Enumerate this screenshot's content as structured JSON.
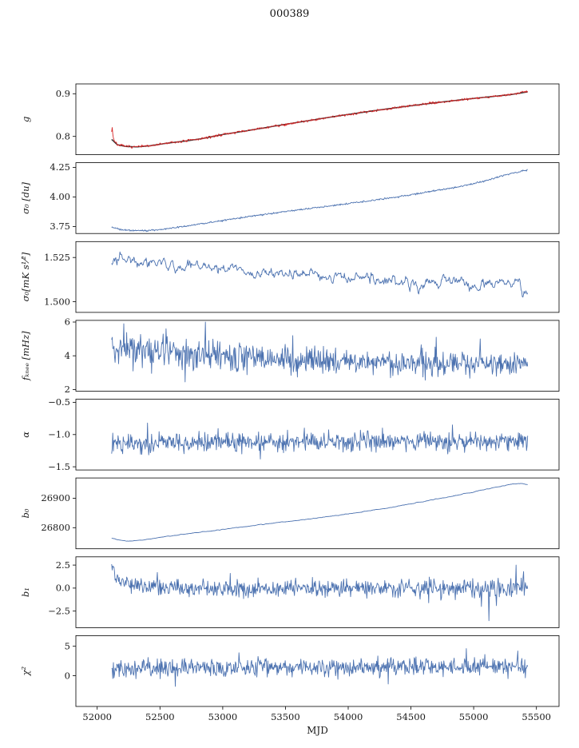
{
  "chart_data": {
    "type": "line",
    "title": "000389",
    "xlabel": "MJD",
    "xlim": [
      51830,
      55680
    ],
    "x_data_range": [
      52115,
      55430
    ],
    "x_ticks": [
      {
        "v": 52000,
        "label": "52000"
      },
      {
        "v": 52500,
        "label": "52500"
      },
      {
        "v": 53000,
        "label": "53000"
      },
      {
        "v": 53500,
        "label": "53500"
      },
      {
        "v": 54000,
        "label": "54000"
      },
      {
        "v": 54500,
        "label": "54500"
      },
      {
        "v": 55000,
        "label": "55000"
      },
      {
        "v": 55500,
        "label": "55500"
      }
    ],
    "colors": {
      "blue": "#4c72b0",
      "red": "#d62728",
      "fit": "#333333",
      "axis": "#000000"
    },
    "legend": "none",
    "grid": false,
    "panels": [
      {
        "name": "g",
        "ylabel": "g",
        "ylim": [
          0.757,
          0.923
        ],
        "yticks": [
          {
            "v": 0.8,
            "label": "0.8"
          },
          {
            "v": 0.9,
            "label": "0.9"
          }
        ],
        "series": [
          {
            "name": "g-fit",
            "color": "#333333",
            "width": 1.5,
            "n": 300,
            "seed": 11,
            "noise": 0,
            "smooth": 0,
            "trend": [
              [
                52115,
                0.793
              ],
              [
                52160,
                0.7805
              ],
              [
                52230,
                0.7762
              ],
              [
                52320,
                0.7755
              ],
              [
                52420,
                0.778
              ],
              [
                52550,
                0.7838
              ],
              [
                52700,
                0.789
              ],
              [
                52850,
                0.7955
              ],
              [
                53000,
                0.8045
              ],
              [
                53200,
                0.8135
              ],
              [
                53400,
                0.8235
              ],
              [
                53600,
                0.833
              ],
              [
                53800,
                0.8425
              ],
              [
                54000,
                0.8515
              ],
              [
                54200,
                0.86
              ],
              [
                54400,
                0.868
              ],
              [
                54600,
                0.8755
              ],
              [
                54800,
                0.8825
              ],
              [
                55000,
                0.889
              ],
              [
                55150,
                0.8935
              ],
              [
                55300,
                0.898
              ],
              [
                55430,
                0.9045
              ]
            ]
          },
          {
            "name": "g-data",
            "color": "#d62728",
            "width": 0.9,
            "n": 700,
            "seed": 7,
            "noise": 0.0025,
            "smooth": 0,
            "trend": [
              [
                52112,
                0.795
              ],
              [
                52118,
                0.828
              ],
              [
                52124,
                0.806
              ],
              [
                52132,
                0.792
              ],
              [
                52160,
                0.7805
              ],
              [
                52230,
                0.7762
              ],
              [
                52320,
                0.7755
              ],
              [
                52420,
                0.778
              ],
              [
                52550,
                0.7838
              ],
              [
                52700,
                0.789
              ],
              [
                52850,
                0.7955
              ],
              [
                53000,
                0.8045
              ],
              [
                53200,
                0.8135
              ],
              [
                53400,
                0.8235
              ],
              [
                53600,
                0.833
              ],
              [
                53800,
                0.8425
              ],
              [
                54000,
                0.8515
              ],
              [
                54200,
                0.86
              ],
              [
                54400,
                0.868
              ],
              [
                54600,
                0.8755
              ],
              [
                54800,
                0.8825
              ],
              [
                55000,
                0.889
              ],
              [
                55150,
                0.8935
              ],
              [
                55300,
                0.898
              ],
              [
                55430,
                0.906
              ]
            ]
          }
        ]
      },
      {
        "name": "sigma0-du",
        "ylabel": "σ₀ [du]",
        "ylim": [
          3.69,
          4.29
        ],
        "yticks": [
          {
            "v": 3.75,
            "label": "3.75"
          },
          {
            "v": 4.0,
            "label": "4.00"
          },
          {
            "v": 4.25,
            "label": "4.25"
          }
        ],
        "series": [
          {
            "name": "sigma0-du",
            "color": "#4c72b0",
            "width": 0.9,
            "n": 700,
            "seed": 21,
            "noise": 0.006,
            "smooth": 0,
            "trend": [
              [
                52115,
                3.744
              ],
              [
                52200,
                3.722
              ],
              [
                52320,
                3.713
              ],
              [
                52430,
                3.718
              ],
              [
                52550,
                3.73
              ],
              [
                52700,
                3.752
              ],
              [
                52850,
                3.776
              ],
              [
                53000,
                3.8
              ],
              [
                53200,
                3.832
              ],
              [
                53400,
                3.862
              ],
              [
                53600,
                3.89
              ],
              [
                53800,
                3.917
              ],
              [
                54000,
                3.944
              ],
              [
                54200,
                3.972
              ],
              [
                54400,
                4.002
              ],
              [
                54600,
                4.036
              ],
              [
                54800,
                4.072
              ],
              [
                54950,
                4.1
              ],
              [
                55100,
                4.14
              ],
              [
                55250,
                4.185
              ],
              [
                55380,
                4.218
              ],
              [
                55430,
                4.226
              ]
            ]
          }
        ]
      },
      {
        "name": "sigma0-mks",
        "ylabel": "σ₀[mK s¹⁄²]",
        "ylim": [
          1.494,
          1.534
        ],
        "yticks": [
          {
            "v": 1.5,
            "label": "1.500"
          },
          {
            "v": 1.525,
            "label": "1.525"
          }
        ],
        "series": [
          {
            "name": "sigma0-mks",
            "color": "#4c72b0",
            "width": 0.9,
            "n": 700,
            "seed": 31,
            "noise": 0.0075,
            "smooth": 2,
            "trend": [
              [
                52115,
                1.52
              ],
              [
                52250,
                1.5255
              ],
              [
                52350,
                1.523
              ],
              [
                52500,
                1.5235
              ],
              [
                52650,
                1.519
              ],
              [
                52800,
                1.5205
              ],
              [
                52950,
                1.517
              ],
              [
                53100,
                1.5185
              ],
              [
                53250,
                1.5155
              ],
              [
                53400,
                1.517
              ],
              [
                53550,
                1.5145
              ],
              [
                53700,
                1.516
              ],
              [
                53850,
                1.5125
              ],
              [
                54000,
                1.514
              ],
              [
                54150,
                1.5115
              ],
              [
                54300,
                1.513
              ],
              [
                54450,
                1.5105
              ],
              [
                54600,
                1.512
              ],
              [
                54750,
                1.51
              ],
              [
                54900,
                1.5115
              ],
              [
                55050,
                1.509
              ],
              [
                55200,
                1.5125
              ],
              [
                55320,
                1.511
              ],
              [
                55430,
                1.5055
              ]
            ]
          }
        ]
      },
      {
        "name": "fknee",
        "ylabel": "fₖₙₑₑ [mHz]",
        "ylim": [
          1.9,
          6.1
        ],
        "yticks": [
          {
            "v": 2,
            "label": "2"
          },
          {
            "v": 4,
            "label": "4"
          },
          {
            "v": 6,
            "label": "6"
          }
        ],
        "series": [
          {
            "name": "fknee",
            "color": "#4c72b0",
            "width": 0.9,
            "n": 720,
            "seed": 41,
            "noise": [
              0.85,
              0.6
            ],
            "smooth": 0,
            "spikes": [
              [
                52210,
                5.9
              ],
              [
                52550,
                5.6
              ],
              [
                52700,
                2.45
              ],
              [
                52860,
                6.0
              ],
              [
                53560,
                5.2
              ],
              [
                54700,
                5.1
              ],
              [
                55050,
                5.0
              ]
            ],
            "trend": [
              [
                52115,
                4.5
              ],
              [
                52250,
                4.4
              ],
              [
                52400,
                4.3
              ],
              [
                52600,
                4.15
              ],
              [
                52800,
                4.05
              ],
              [
                53000,
                3.95
              ],
              [
                53300,
                3.85
              ],
              [
                53600,
                3.75
              ],
              [
                54000,
                3.65
              ],
              [
                54400,
                3.6
              ],
              [
                54800,
                3.6
              ],
              [
                55430,
                3.55
              ]
            ]
          }
        ]
      },
      {
        "name": "alpha",
        "ylabel": "α",
        "ylim": [
          -1.55,
          -0.45
        ],
        "yticks": [
          {
            "v": -1.5,
            "label": "−1.5"
          },
          {
            "v": -1.0,
            "label": "−1.0"
          },
          {
            "v": -0.5,
            "label": "−0.5"
          }
        ],
        "series": [
          {
            "name": "alpha",
            "color": "#4c72b0",
            "width": 0.9,
            "n": 720,
            "seed": 51,
            "noise": 0.13,
            "smooth": 0,
            "spikes": [
              [
                52400,
                -0.82
              ],
              [
                53300,
                -1.38
              ],
              [
                54830,
                -0.85
              ]
            ],
            "trend": [
              [
                52115,
                -1.13
              ],
              [
                53000,
                -1.12
              ],
              [
                54000,
                -1.11
              ],
              [
                55430,
                -1.1
              ]
            ]
          }
        ]
      },
      {
        "name": "b0",
        "ylabel": "b₀",
        "ylim": [
          26728,
          26969
        ],
        "yticks": [
          {
            "v": 26800,
            "label": "26800"
          },
          {
            "v": 26900,
            "label": "26900"
          }
        ],
        "series": [
          {
            "name": "b0",
            "color": "#4c72b0",
            "width": 0.9,
            "n": 700,
            "seed": 61,
            "noise": 2.2,
            "smooth": 2,
            "trend": [
              [
                52115,
                26764
              ],
              [
                52180,
                26757
              ],
              [
                52280,
                26754
              ],
              [
                52400,
                26760
              ],
              [
                52550,
                26770
              ],
              [
                52700,
                26778
              ],
              [
                52850,
                26786
              ],
              [
                53000,
                26794
              ],
              [
                53150,
                26802
              ],
              [
                53300,
                26810
              ],
              [
                53500,
                26820
              ],
              [
                53700,
                26830
              ],
              [
                53900,
                26841
              ],
              [
                54100,
                26853
              ],
              [
                54300,
                26866
              ],
              [
                54500,
                26881
              ],
              [
                54700,
                26897
              ],
              [
                54900,
                26913
              ],
              [
                55050,
                26926
              ],
              [
                55200,
                26940
              ],
              [
                55300,
                26948
              ],
              [
                55370,
                26951
              ],
              [
                55430,
                26947
              ]
            ]
          }
        ]
      },
      {
        "name": "b1",
        "ylabel": "b₁",
        "ylim": [
          -4.3,
          3.4
        ],
        "yticks": [
          {
            "v": -2.5,
            "label": "−2.5"
          },
          {
            "v": 0.0,
            "label": "0.0"
          },
          {
            "v": 2.5,
            "label": "2.5"
          }
        ],
        "series": [
          {
            "name": "b1",
            "color": "#4c72b0",
            "width": 0.9,
            "n": 720,
            "seed": 71,
            "noise": [
              0.7,
              0.9
            ],
            "smooth": 0,
            "spikes": [
              [
                52480,
                1.7
              ],
              [
                53060,
                1.6
              ],
              [
                54640,
                -1.6
              ],
              [
                55060,
                -2.0
              ],
              [
                55120,
                -3.55
              ],
              [
                55180,
                -1.9
              ],
              [
                55340,
                2.5
              ],
              [
                55400,
                1.8
              ]
            ],
            "trend": [
              [
                52115,
                2.45
              ],
              [
                52150,
                1.3
              ],
              [
                52200,
                0.6
              ],
              [
                52300,
                0.2
              ],
              [
                52450,
                0.05
              ],
              [
                52700,
                0
              ],
              [
                55430,
                0
              ]
            ]
          }
        ]
      },
      {
        "name": "chi2",
        "ylabel": "χ²",
        "ylim": [
          -5.2,
          6.8
        ],
        "yticks": [
          {
            "v": 0,
            "label": "0"
          },
          {
            "v": 5,
            "label": "5"
          }
        ],
        "series": [
          {
            "name": "chi2",
            "color": "#4c72b0",
            "width": 0.9,
            "n": 720,
            "seed": 81,
            "noise": 1.3,
            "smooth": 0,
            "spikes": [
              [
                52620,
                -1.8
              ],
              [
                53130,
                3.9
              ],
              [
                54320,
                -1.4
              ],
              [
                54940,
                4.6
              ],
              [
                55350,
                4.2
              ]
            ],
            "trend": [
              [
                52115,
                1.2
              ],
              [
                53000,
                1.4
              ],
              [
                54000,
                1.4
              ],
              [
                55430,
                1.5
              ]
            ]
          }
        ]
      }
    ]
  }
}
